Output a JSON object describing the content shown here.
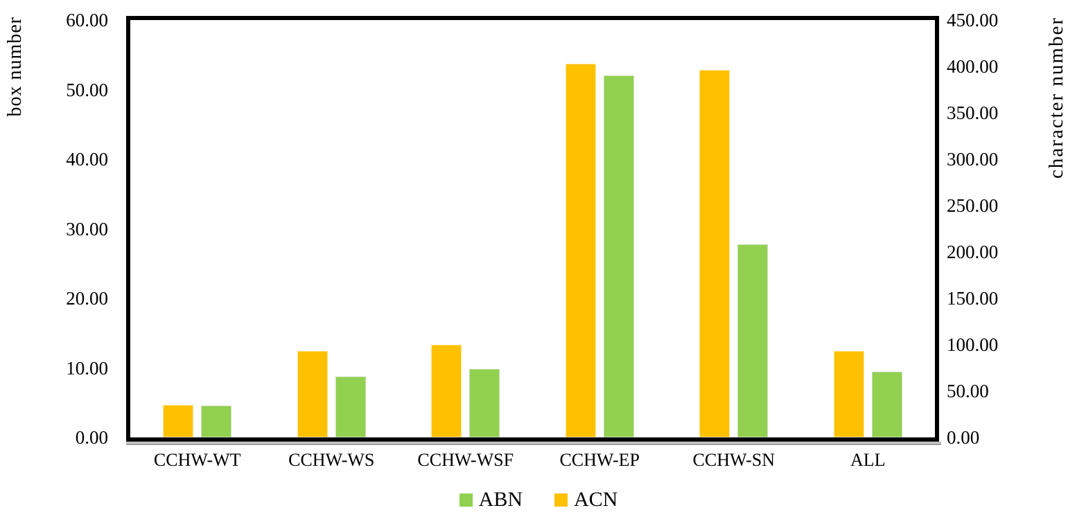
{
  "chart_data": {
    "type": "bar",
    "title": "",
    "categories": [
      "CCHW-WT",
      "CCHW-WS",
      "CCHW-WSF",
      "CCHW-EP",
      "CCHW-SN",
      "ALL"
    ],
    "series": [
      {
        "name": "ACN",
        "axis": "right",
        "color": "#FFC000",
        "edge_color": "#FFE699",
        "values": [
          35,
          93,
          100,
          403,
          396,
          93
        ]
      },
      {
        "name": "ABN",
        "axis": "left",
        "color": "#92D050",
        "edge_color": "#C6E0B4",
        "values": [
          4.6,
          8.8,
          9.9,
          52.0,
          27.8,
          9.5
        ]
      }
    ],
    "left_axis": {
      "title": "box number",
      "min": 0,
      "max": 60,
      "ticks": [
        "60.00",
        "50.00",
        "40.00",
        "30.00",
        "20.00",
        "10.00",
        "0.00"
      ]
    },
    "right_axis": {
      "title": "character number",
      "min": 0,
      "max": 450,
      "ticks": [
        "450.00",
        "400.00",
        "350.00",
        "300.00",
        "250.00",
        "200.00",
        "150.00",
        "100.00",
        "50.00",
        "0.00"
      ]
    },
    "legend": {
      "position": "bottom",
      "items": [
        {
          "label": "ABN",
          "color": "#92D050"
        },
        {
          "label": "ACN",
          "color": "#FFC000"
        }
      ]
    },
    "grid": false,
    "frame_color": "#000000",
    "background": "#ffffff"
  }
}
